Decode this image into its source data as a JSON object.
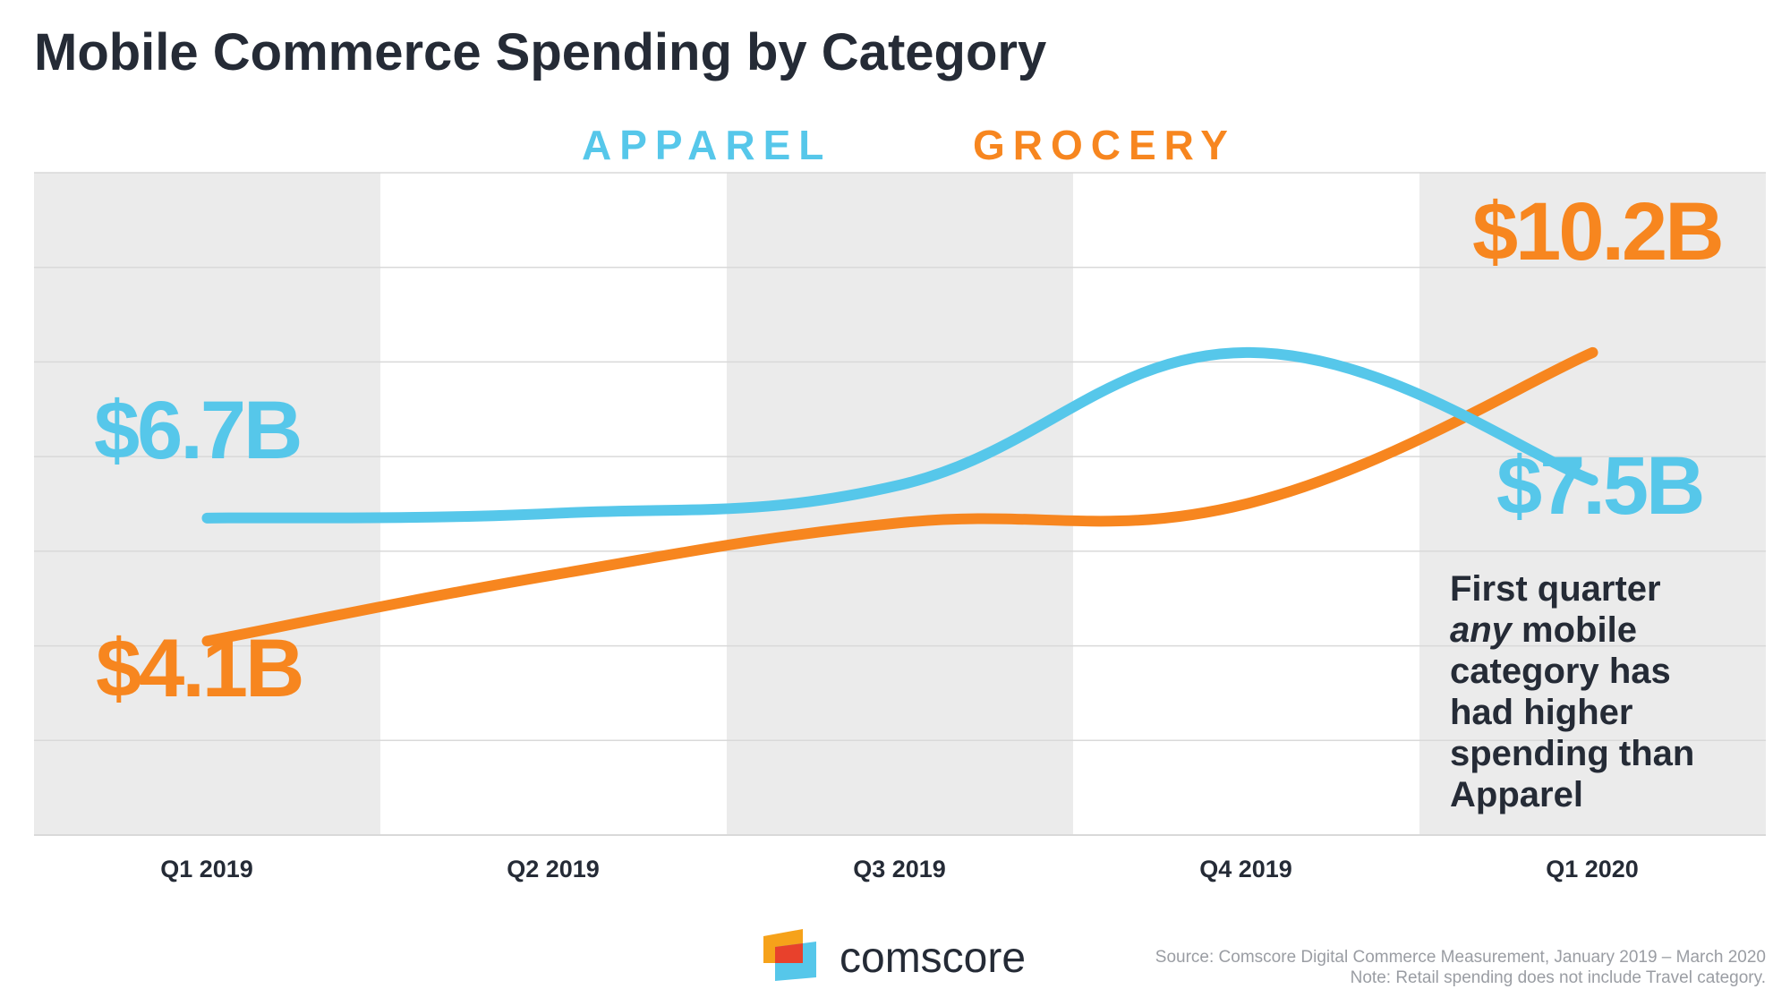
{
  "colors": {
    "apparel": "#56c7ea",
    "grocery": "#f7861f",
    "text": "#252b36",
    "band": "#ebebeb",
    "grid": "#d9d9d9",
    "source": "#9a9da3"
  },
  "chart_data": {
    "type": "line",
    "title": "Mobile Commerce Spending by Category",
    "categories": [
      "Q1 2019",
      "Q2 2019",
      "Q3 2019",
      "Q4 2019",
      "Q1 2020"
    ],
    "ylim": [
      0,
      14
    ],
    "grid": true,
    "legend_placement": "top-center",
    "series": [
      {
        "name": "APPAREL",
        "values": [
          6.7,
          6.8,
          7.4,
          10.2,
          7.5
        ],
        "color": "#56c7ea"
      },
      {
        "name": "GROCERY",
        "values": [
          4.1,
          5.5,
          6.6,
          7.0,
          10.2
        ],
        "color": "#f7861f"
      }
    ],
    "annotations": {
      "apparel_start": "$6.7B",
      "apparel_end": "$7.5B",
      "grocery_start": "$4.1B",
      "grocery_end": "$10.2B"
    },
    "note_lines": [
      "First quarter",
      "any",
      " mobile",
      "category has",
      "had higher",
      "spending than",
      "Apparel"
    ]
  },
  "brand": {
    "name": "comscore"
  },
  "source": {
    "line1": "Source: Comscore Digital Commerce Measurement, January 2019 – March 2020",
    "line2": "Note: Retail spending does not include Travel category."
  }
}
